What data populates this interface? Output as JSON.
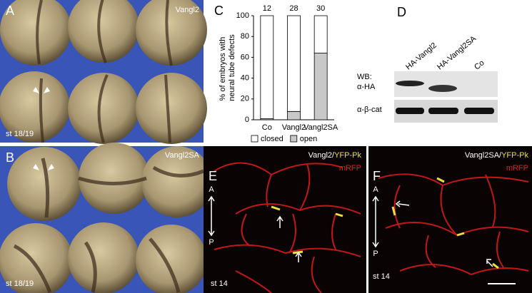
{
  "panels": {
    "A": {
      "label": "A",
      "title": "Vangl2",
      "stage": "st 18/19"
    },
    "B": {
      "label": "B",
      "title": "Vangl2SA",
      "stage": "st 18/19"
    },
    "D": {
      "label": "D",
      "lanes": [
        "HA-Vangl2",
        "HA-Vangl2SA",
        "Co"
      ],
      "wb": "WB:",
      "antibodies": [
        "α-HA",
        "α-β-cat"
      ]
    },
    "E": {
      "label": "E",
      "construct": "Vangl2/",
      "marker": "YFP-Pk",
      "membrane": "mRFP",
      "anterior": "A",
      "posterior": "P",
      "stage": "st 14"
    },
    "F": {
      "label": "F",
      "construct": "Vangl2SA/",
      "marker": "YFP-Pk",
      "membrane": "mRFP",
      "anterior": "A",
      "posterior": "P",
      "stage": "st 14"
    }
  },
  "chart_data": {
    "type": "stacked_bar",
    "label": "C",
    "ylabel_lines": [
      "% of embryos with",
      "neural tube defects"
    ],
    "categories": [
      "Co",
      "Vangl2",
      "Vangl2SA"
    ],
    "n_labels": [
      12,
      28,
      30
    ],
    "series": [
      {
        "name": "closed",
        "color": "#ffffff",
        "values": [
          99,
          92,
          36
        ]
      },
      {
        "name": "open",
        "color": "#c8c8c8",
        "values": [
          1,
          8,
          64
        ]
      }
    ],
    "ylim": [
      0,
      100
    ],
    "yticks": [
      0,
      20,
      40,
      60,
      80,
      100
    ]
  }
}
